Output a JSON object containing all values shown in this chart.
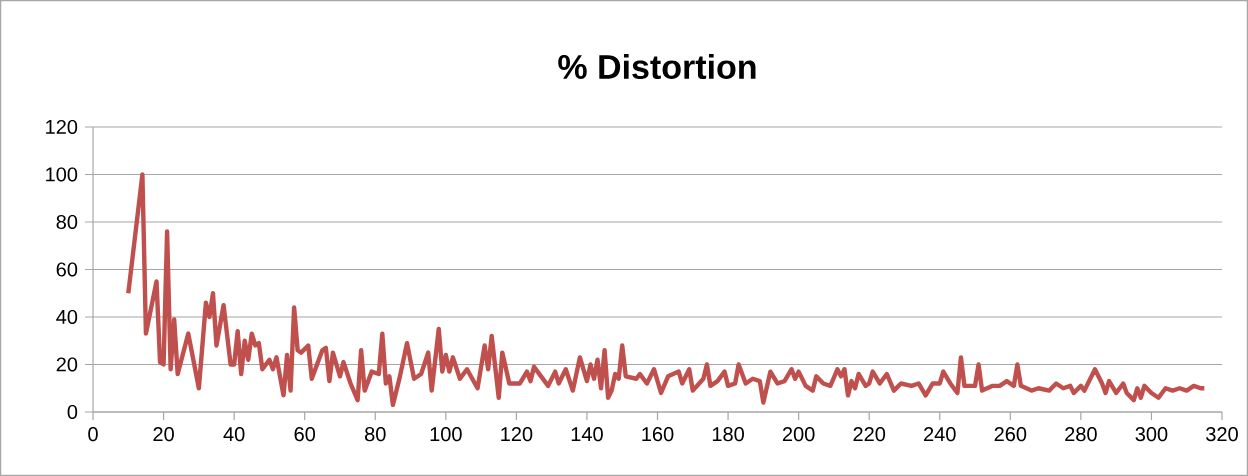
{
  "chart_data": {
    "type": "line",
    "title": "% Distortion",
    "x": [
      10,
      14,
      15,
      18,
      19,
      20,
      21,
      22,
      23,
      24,
      27,
      30,
      32,
      33,
      34,
      35,
      37,
      39,
      40,
      41,
      42,
      43,
      44,
      45,
      46,
      47,
      48,
      50,
      51,
      52,
      54,
      55,
      56,
      57,
      58,
      59,
      61,
      62,
      65,
      66,
      67,
      68,
      70,
      71,
      73,
      75,
      76,
      77,
      79,
      81,
      82,
      83,
      84,
      85,
      87,
      89,
      91,
      93,
      95,
      96,
      98,
      99,
      100,
      101,
      102,
      104,
      106,
      109,
      111,
      112,
      113,
      115,
      116,
      118,
      121,
      123,
      124,
      125,
      127,
      129,
      131,
      132,
      134,
      136,
      138,
      140,
      141,
      142,
      143,
      144,
      145,
      146,
      147,
      148,
      149,
      150,
      151,
      154,
      155,
      157,
      159,
      161,
      163,
      166,
      167,
      169,
      170,
      173,
      174,
      175,
      177,
      179,
      180,
      182,
      183,
      185,
      187,
      189,
      190,
      192,
      194,
      196,
      198,
      199,
      200,
      202,
      204,
      205,
      207,
      209,
      211,
      212,
      213,
      214,
      215,
      216,
      217,
      219,
      220,
      221,
      223,
      225,
      227,
      229,
      232,
      234,
      236,
      238,
      240,
      241,
      243,
      245,
      246,
      247,
      250,
      251,
      252,
      255,
      257,
      259,
      261,
      262,
      263,
      266,
      268,
      271,
      273,
      275,
      277,
      278,
      280,
      281,
      284,
      286,
      287,
      288,
      290,
      292,
      293,
      295,
      296,
      297,
      298,
      300,
      302,
      304,
      306,
      308,
      310,
      312,
      314,
      315
    ],
    "series": [
      {
        "color": "#c0504d",
        "values": [
          50,
          100,
          33,
          55,
          21,
          20,
          76,
          18,
          39,
          16,
          33,
          10,
          46,
          40,
          50,
          28,
          45,
          20,
          20,
          34,
          16,
          30,
          22,
          33,
          28,
          29,
          18,
          22,
          18,
          23,
          7,
          24,
          9,
          44,
          26,
          25,
          28,
          14,
          26,
          27,
          13,
          25,
          15,
          21,
          12,
          5,
          26,
          9,
          17,
          16,
          33,
          12,
          15,
          3,
          15,
          29,
          14,
          16,
          25,
          9,
          35,
          17,
          24,
          17,
          23,
          14,
          18,
          10,
          28,
          18,
          32,
          6,
          25,
          12,
          12,
          17,
          13,
          19,
          15,
          11,
          17,
          12,
          18,
          9,
          23,
          13,
          20,
          14,
          22,
          10,
          26,
          6,
          9,
          16,
          14,
          28,
          15,
          14,
          16,
          12,
          18,
          8,
          15,
          17,
          12,
          18,
          9,
          14,
          20,
          11,
          13,
          17,
          11,
          12,
          20,
          12,
          14,
          13,
          4,
          17,
          12,
          13,
          18,
          14,
          17,
          11,
          9,
          15,
          12,
          11,
          18,
          15,
          18,
          7,
          13,
          10,
          16,
          11,
          12,
          17,
          12,
          16,
          9,
          12,
          11,
          12,
          7,
          12,
          12,
          17,
          12,
          8,
          23,
          11,
          11,
          20,
          9,
          11,
          11,
          13,
          11,
          20,
          11,
          9,
          10,
          9,
          12,
          10,
          11,
          8,
          11,
          9,
          18,
          12,
          8,
          13,
          8,
          12,
          8,
          5,
          10,
          6,
          11,
          8,
          6,
          10,
          9,
          10,
          9,
          11,
          10,
          10
        ]
      }
    ],
    "xlim": [
      0,
      320
    ],
    "xticks": [
      0,
      20,
      40,
      60,
      80,
      100,
      120,
      140,
      160,
      180,
      200,
      220,
      240,
      260,
      280,
      300,
      320
    ],
    "ylim": [
      0,
      120
    ],
    "yticks": [
      0,
      20,
      40,
      60,
      80,
      100,
      120
    ],
    "grid": "y",
    "line_style": "solid"
  }
}
